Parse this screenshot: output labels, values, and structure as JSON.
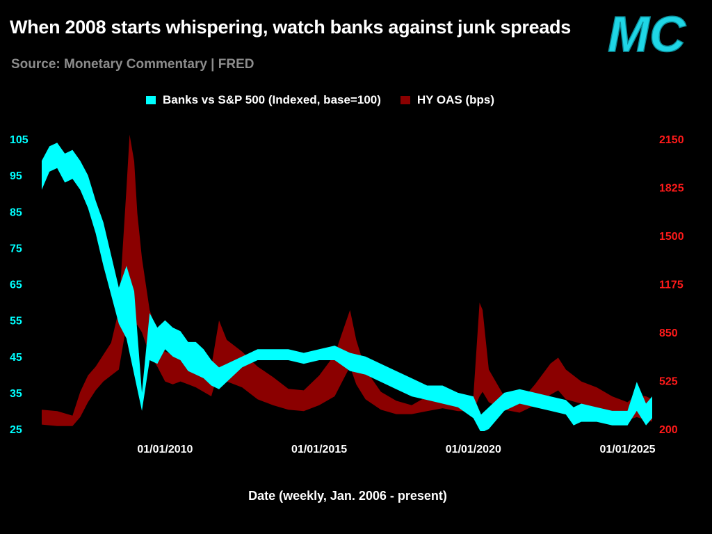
{
  "header": {
    "title": "When 2008 starts whispering, watch banks against junk spreads",
    "subtitle": "Source: Monetary Commentary | FRED",
    "logo_text": "MC"
  },
  "colors": {
    "background": "#000000",
    "banks": "#00ffff",
    "hy_oas": "#8b0000",
    "overlap": "#8c8c8c",
    "left_axis": "#00ffff",
    "right_axis": "#ff1a1a",
    "logo": "#1fd6e6"
  },
  "chart_data": {
    "type": "area",
    "title": "When 2008 starts whispering, watch banks against junk spreads",
    "subtitle": "Source: Monetary Commentary | FRED",
    "xlabel": "Date (weekly, Jan. 2006 - present)",
    "x_ticks": [
      "01/01/2010",
      "01/01/2015",
      "01/01/2020",
      "01/01/2025"
    ],
    "x_range": [
      2006.0,
      2025.8
    ],
    "legend_position": "top-center",
    "grid": false,
    "axes": {
      "left": {
        "ticks": [
          25,
          35,
          45,
          55,
          65,
          75,
          85,
          95,
          105
        ],
        "range": [
          25,
          105
        ]
      },
      "right": {
        "ticks": [
          200,
          525,
          850,
          1175,
          1500,
          1825,
          2150
        ],
        "range": [
          200,
          2150
        ]
      }
    },
    "series": [
      {
        "name": "Banks vs S&P 500 (Indexed, base=100)",
        "axis": "left",
        "x": [
          2006.0,
          2006.25,
          2006.5,
          2006.75,
          2007.0,
          2007.25,
          2007.5,
          2007.75,
          2008.0,
          2008.25,
          2008.5,
          2008.75,
          2009.0,
          2009.25,
          2009.5,
          2009.75,
          2010.0,
          2010.25,
          2010.5,
          2010.75,
          2011.0,
          2011.25,
          2011.5,
          2011.75,
          2012.0,
          2012.5,
          2013.0,
          2013.5,
          2014.0,
          2014.5,
          2015.0,
          2015.5,
          2016.0,
          2016.5,
          2017.0,
          2017.5,
          2018.0,
          2018.5,
          2019.0,
          2019.5,
          2020.0,
          2020.25,
          2020.5,
          2021.0,
          2021.5,
          2022.0,
          2022.5,
          2023.0,
          2023.25,
          2023.5,
          2024.0,
          2024.5,
          2025.0,
          2025.3,
          2025.6,
          2025.8
        ],
        "high": [
          99,
          103,
          104,
          101,
          102,
          99,
          95,
          88,
          82,
          73,
          64,
          70,
          63,
          35,
          57,
          53,
          55,
          53,
          52,
          49,
          49,
          47,
          44,
          42,
          43,
          45,
          47,
          47,
          47,
          46,
          47,
          48,
          46,
          45,
          43,
          41,
          39,
          37,
          37,
          35,
          34,
          29,
          31,
          35,
          36,
          35,
          34,
          33,
          31,
          32,
          31,
          30,
          30,
          38,
          32,
          34
        ],
        "low": [
          91,
          96,
          97,
          93,
          94,
          91,
          86,
          79,
          70,
          62,
          54,
          50,
          40,
          30,
          44,
          43,
          47,
          45,
          44,
          41,
          40,
          39,
          37,
          36,
          38,
          42,
          44,
          44,
          44,
          43,
          44,
          44,
          41,
          40,
          38,
          36,
          34,
          33,
          32,
          31,
          28,
          24,
          25,
          30,
          32,
          31,
          30,
          29,
          26,
          27,
          27,
          26,
          26,
          30,
          26,
          28
        ]
      },
      {
        "name": "HY OAS (bps)",
        "axis": "right",
        "x": [
          2006.0,
          2006.5,
          2007.0,
          2007.25,
          2007.5,
          2007.75,
          2008.0,
          2008.25,
          2008.5,
          2008.75,
          2008.85,
          2009.0,
          2009.1,
          2009.25,
          2009.5,
          2009.75,
          2010.0,
          2010.25,
          2010.5,
          2010.75,
          2011.0,
          2011.5,
          2011.75,
          2012.0,
          2012.5,
          2013.0,
          2013.5,
          2014.0,
          2014.5,
          2015.0,
          2015.5,
          2015.75,
          2016.0,
          2016.2,
          2016.5,
          2017.0,
          2017.5,
          2018.0,
          2018.5,
          2019.0,
          2019.5,
          2020.0,
          2020.2,
          2020.3,
          2020.5,
          2021.0,
          2021.5,
          2022.0,
          2022.5,
          2022.75,
          2023.0,
          2023.5,
          2024.0,
          2024.5,
          2025.0,
          2025.3,
          2025.6,
          2025.8
        ],
        "high": [
          330,
          320,
          290,
          450,
          560,
          620,
          700,
          780,
          1000,
          1820,
          2180,
          2000,
          1650,
          1350,
          1000,
          850,
          720,
          700,
          780,
          720,
          650,
          620,
          930,
          800,
          720,
          620,
          550,
          470,
          460,
          560,
          700,
          850,
          1000,
          800,
          600,
          450,
          390,
          360,
          420,
          470,
          420,
          420,
          1050,
          1000,
          600,
          420,
          380,
          500,
          640,
          680,
          600,
          520,
          480,
          420,
          380,
          430,
          420,
          400
        ],
        "low": [
          230,
          220,
          220,
          280,
          380,
          460,
          520,
          560,
          600,
          900,
          1050,
          900,
          900,
          850,
          700,
          620,
          520,
          500,
          520,
          500,
          480,
          420,
          600,
          520,
          480,
          400,
          360,
          330,
          320,
          360,
          420,
          520,
          620,
          500,
          400,
          330,
          300,
          300,
          320,
          340,
          320,
          320,
          420,
          450,
          380,
          330,
          310,
          360,
          430,
          460,
          400,
          370,
          330,
          300,
          260,
          280,
          260,
          250
        ]
      }
    ]
  }
}
